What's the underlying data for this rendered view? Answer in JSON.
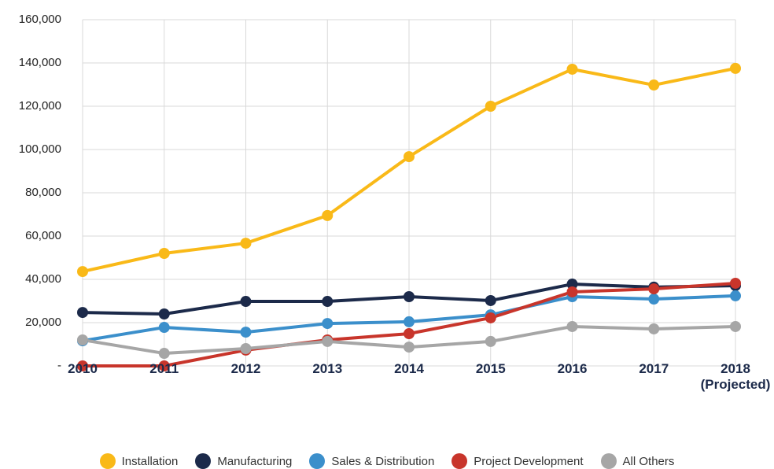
{
  "chart_data": {
    "type": "line",
    "categories": [
      "2010",
      "2011",
      "2012",
      "2013",
      "2014",
      "2015",
      "2016",
      "2017",
      "2018 (Projected)"
    ],
    "series": [
      {
        "name": "Installation",
        "color": "#f9b918",
        "values": [
          43600,
          52000,
          56700,
          69500,
          96700,
          120000,
          137100,
          129800,
          137500
        ]
      },
      {
        "name": "Manufacturing",
        "color": "#1c2a4a",
        "values": [
          24700,
          24000,
          29800,
          29800,
          32000,
          30200,
          37800,
          36400,
          37100
        ]
      },
      {
        "name": "Sales & Distribution",
        "color": "#3b8fcb",
        "values": [
          11600,
          17800,
          15600,
          19600,
          20400,
          23600,
          32000,
          30900,
          32400
        ]
      },
      {
        "name": "Project Development",
        "color": "#c8352b",
        "values": [
          0,
          0,
          7300,
          12000,
          14900,
          22200,
          34200,
          35600,
          38200
        ]
      },
      {
        "name": "All Others",
        "color": "#a6a6a6",
        "values": [
          12000,
          5800,
          8000,
          11300,
          8700,
          11300,
          18200,
          17100,
          18200
        ]
      }
    ],
    "ylim": [
      0,
      160000
    ],
    "yticks": [
      {
        "value": 0,
        "label": "-"
      },
      {
        "value": 20000,
        "label": "20,000"
      },
      {
        "value": 40000,
        "label": "40,000"
      },
      {
        "value": 60000,
        "label": "60,000"
      },
      {
        "value": 80000,
        "label": "80,000"
      },
      {
        "value": 100000,
        "label": "100,000"
      },
      {
        "value": 120000,
        "label": "120,000"
      },
      {
        "value": 140000,
        "label": "140,000"
      },
      {
        "value": 160000,
        "label": "160,000"
      }
    ],
    "grid": true,
    "legend": "bottom"
  }
}
